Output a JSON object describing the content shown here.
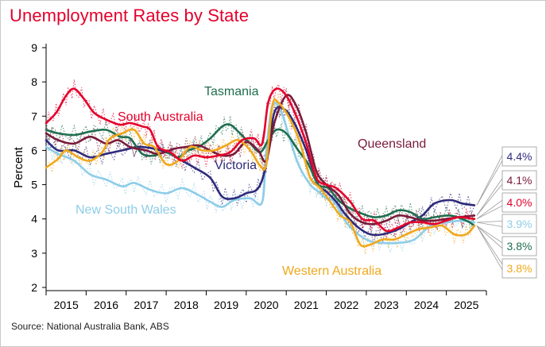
{
  "title": "Unemployment Rates by State",
  "source": "Source: National Australia Bank, ABS",
  "colors": {
    "nsw": "#8ecde8",
    "vic": "#2e2a7a",
    "qld": "#7a1a3a",
    "sa": "#e4002b",
    "wa": "#f0a81c",
    "tas": "#1f6e4f"
  },
  "chart_data": {
    "type": "line",
    "ylabel": "Percent",
    "ylim": [
      2,
      9
    ],
    "xlim": [
      2014.5,
      2025.5
    ],
    "yticks": [
      2,
      3,
      4,
      5,
      6,
      7,
      8,
      9
    ],
    "xticks": [
      "2015",
      "2016",
      "2017",
      "2018",
      "2019",
      "2020",
      "2021",
      "2022",
      "2023",
      "2024",
      "2025"
    ],
    "series": [
      {
        "key": "nsw",
        "name": "New South Wales",
        "x": [
          2014.5,
          2014.8,
          2015.2,
          2015.6,
          2016.0,
          2016.4,
          2016.7,
          2017.1,
          2017.5,
          2017.9,
          2018.3,
          2018.6,
          2018.9,
          2019.2,
          2019.6,
          2019.9,
          2020.0,
          2020.15,
          2020.35,
          2020.55,
          2020.8,
          2021.1,
          2021.3,
          2021.5,
          2021.7,
          2022.0,
          2022.3,
          2022.6,
          2022.9,
          2023.3,
          2023.7,
          2024.1,
          2024.5,
          2024.9,
          2025.2
        ],
        "y": [
          6.1,
          5.9,
          5.7,
          5.3,
          5.15,
          4.95,
          5.05,
          4.85,
          4.75,
          4.9,
          4.7,
          4.5,
          4.35,
          4.55,
          4.6,
          4.5,
          6.0,
          7.3,
          7.2,
          6.5,
          5.6,
          5.0,
          4.8,
          4.6,
          4.5,
          3.9,
          3.55,
          3.35,
          3.3,
          3.3,
          3.4,
          3.8,
          3.9,
          3.95,
          3.9
        ]
      },
      {
        "key": "vic",
        "name": "Victoria",
        "x": [
          2014.5,
          2014.8,
          2015.2,
          2015.6,
          2016.0,
          2016.4,
          2016.8,
          2017.2,
          2017.6,
          2017.9,
          2018.2,
          2018.6,
          2018.9,
          2019.2,
          2019.5,
          2019.8,
          2020.0,
          2020.2,
          2020.45,
          2020.7,
          2021.0,
          2021.3,
          2021.5,
          2021.75,
          2022.0,
          2022.3,
          2022.6,
          2022.9,
          2023.3,
          2023.6,
          2023.9,
          2024.2,
          2024.6,
          2024.9,
          2025.2
        ],
        "y": [
          6.3,
          6.0,
          6.0,
          5.8,
          5.9,
          6.0,
          6.1,
          6.05,
          5.9,
          5.7,
          5.5,
          5.2,
          4.65,
          4.6,
          4.75,
          4.9,
          5.6,
          7.1,
          7.2,
          6.8,
          6.0,
          5.0,
          4.8,
          4.5,
          4.1,
          3.75,
          3.55,
          3.55,
          3.7,
          3.9,
          4.1,
          4.45,
          4.55,
          4.45,
          4.4
        ]
      },
      {
        "key": "qld",
        "name": "Queensland",
        "x": [
          2014.5,
          2014.8,
          2015.2,
          2015.6,
          2016.0,
          2016.3,
          2016.6,
          2017.0,
          2017.3,
          2017.7,
          2018.0,
          2018.3,
          2018.6,
          2018.9,
          2019.2,
          2019.5,
          2019.8,
          2020.0,
          2020.2,
          2020.5,
          2020.75,
          2021.0,
          2021.25,
          2021.5,
          2021.8,
          2022.1,
          2022.4,
          2022.7,
          2023.0,
          2023.3,
          2023.6,
          2023.9,
          2024.2,
          2024.5,
          2024.8,
          2025.2
        ],
        "y": [
          6.5,
          6.3,
          6.2,
          6.4,
          6.2,
          6.3,
          6.1,
          6.0,
          5.9,
          6.05,
          6.1,
          6.15,
          6.0,
          5.85,
          5.9,
          6.25,
          6.0,
          5.7,
          6.8,
          7.6,
          7.3,
          6.5,
          5.4,
          5.0,
          4.7,
          4.15,
          3.9,
          3.85,
          3.95,
          4.1,
          4.05,
          3.95,
          3.95,
          4.0,
          4.05,
          4.1
        ]
      },
      {
        "key": "sa",
        "name": "South Australia",
        "x": [
          2014.5,
          2014.75,
          2015.0,
          2015.2,
          2015.45,
          2015.7,
          2016.0,
          2016.35,
          2016.6,
          2016.9,
          2017.1,
          2017.3,
          2017.6,
          2017.9,
          2018.2,
          2018.5,
          2018.8,
          2019.1,
          2019.4,
          2019.7,
          2019.9,
          2020.05,
          2020.25,
          2020.5,
          2020.75,
          2021.0,
          2021.25,
          2021.5,
          2021.75,
          2022.1,
          2022.4,
          2022.7,
          2023.0,
          2023.3,
          2023.6,
          2023.9,
          2024.2,
          2024.5,
          2024.8,
          2025.2
        ],
        "y": [
          6.8,
          7.1,
          7.6,
          7.8,
          7.5,
          7.1,
          6.9,
          6.75,
          6.8,
          6.7,
          6.6,
          6.1,
          5.95,
          5.7,
          5.85,
          5.8,
          5.85,
          5.95,
          6.3,
          6.35,
          6.2,
          7.4,
          7.8,
          7.6,
          7.0,
          6.2,
          5.2,
          5.0,
          4.9,
          4.5,
          4.0,
          3.95,
          3.65,
          3.75,
          3.9,
          3.9,
          3.85,
          3.95,
          4.05,
          4.0
        ]
      },
      {
        "key": "wa",
        "name": "Western Australia",
        "x": [
          2014.5,
          2014.8,
          2015.0,
          2015.3,
          2015.6,
          2015.9,
          2016.1,
          2016.4,
          2016.7,
          2016.95,
          2017.2,
          2017.5,
          2017.8,
          2018.1,
          2018.4,
          2018.7,
          2019.0,
          2019.3,
          2019.6,
          2019.85,
          2020.0,
          2020.15,
          2020.3,
          2020.6,
          2020.85,
          2021.1,
          2021.35,
          2021.6,
          2021.85,
          2022.1,
          2022.35,
          2022.6,
          2022.9,
          2023.2,
          2023.5,
          2023.8,
          2024.1,
          2024.4,
          2024.7,
          2025.0,
          2025.2
        ],
        "y": [
          5.5,
          5.75,
          6.0,
          5.8,
          5.7,
          5.95,
          6.35,
          6.5,
          6.6,
          6.2,
          6.1,
          5.6,
          5.7,
          6.1,
          6.0,
          6.0,
          6.15,
          6.3,
          6.0,
          5.55,
          5.6,
          7.3,
          7.4,
          6.9,
          6.2,
          5.2,
          4.9,
          4.5,
          4.1,
          3.9,
          3.25,
          3.25,
          3.4,
          3.4,
          3.55,
          3.7,
          3.75,
          3.8,
          3.55,
          3.55,
          3.8
        ]
      },
      {
        "key": "tas",
        "name": "Tasmania",
        "x": [
          2014.5,
          2014.8,
          2015.2,
          2015.6,
          2016.0,
          2016.35,
          2016.6,
          2016.9,
          2017.2,
          2017.5,
          2017.8,
          2018.05,
          2018.3,
          2018.6,
          2018.9,
          2019.1,
          2019.3,
          2019.6,
          2019.85,
          2020.05,
          2020.25,
          2020.5,
          2020.8,
          2021.05,
          2021.3,
          2021.55,
          2021.8,
          2022.1,
          2022.4,
          2022.7,
          2023.0,
          2023.3,
          2023.6,
          2023.9,
          2024.2,
          2024.6,
          2025.0,
          2025.2
        ],
        "y": [
          6.6,
          6.5,
          6.45,
          6.55,
          6.6,
          6.4,
          6.35,
          5.9,
          5.85,
          5.95,
          5.8,
          6.0,
          6.1,
          6.35,
          6.7,
          6.75,
          6.55,
          6.2,
          5.95,
          6.3,
          6.6,
          6.5,
          6.0,
          5.6,
          5.0,
          4.9,
          4.55,
          4.3,
          4.15,
          4.05,
          4.1,
          4.25,
          4.2,
          4.0,
          4.05,
          4.1,
          3.95,
          3.8
        ]
      }
    ],
    "annotations": [
      {
        "text": "South Australia",
        "series": "sa"
      },
      {
        "text": "Tasmania",
        "series": "tas"
      },
      {
        "text": "Queensland",
        "series": "qld"
      },
      {
        "text": "Victoria",
        "series": "vic"
      },
      {
        "text": "New South Wales",
        "series": "nsw"
      },
      {
        "text": "Western Australia",
        "series": "wa"
      }
    ],
    "end_labels": [
      {
        "text": "4.4%",
        "series": "vic"
      },
      {
        "text": "4.1%",
        "series": "qld"
      },
      {
        "text": "4.0%",
        "series": "sa"
      },
      {
        "text": "3.9%",
        "series": "nsw"
      },
      {
        "text": "3.8%",
        "series": "tas"
      },
      {
        "text": "3.8%",
        "series": "wa"
      }
    ]
  }
}
